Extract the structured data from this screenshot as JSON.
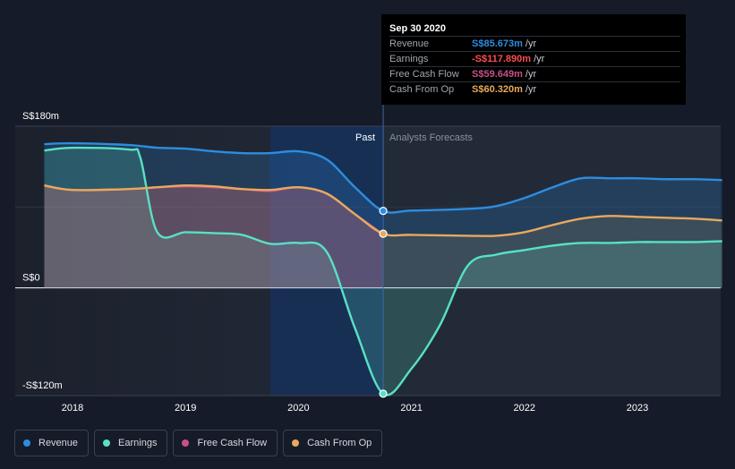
{
  "chart_data": {
    "type": "area",
    "title": "",
    "xlabel": "",
    "ylabel": "",
    "x_axis": {
      "ticks": [
        "2018",
        "2019",
        "2020",
        "2021",
        "2022",
        "2023"
      ],
      "tick_values": [
        2018,
        2019,
        2020,
        2021,
        2022,
        2023
      ],
      "range": [
        2017.75,
        2023.75
      ]
    },
    "y_axis": {
      "ticks": [
        "S$180m",
        "S$0",
        "-S$120m"
      ],
      "tick_values": [
        180,
        0,
        -120
      ],
      "range": [
        -120,
        180
      ]
    },
    "regions": {
      "past_label": "Past",
      "forecast_label": "Analysts Forecasts",
      "split_x": 2020.75,
      "highlight_start": 2019.75
    },
    "series": [
      {
        "name": "Revenue",
        "color": "#2d8de0",
        "points": [
          [
            2017.75,
            160
          ],
          [
            2018.0,
            161
          ],
          [
            2018.5,
            159
          ],
          [
            2018.75,
            156
          ],
          [
            2019.0,
            155
          ],
          [
            2019.25,
            152
          ],
          [
            2019.5,
            150
          ],
          [
            2019.75,
            150
          ],
          [
            2020.0,
            152
          ],
          [
            2020.25,
            143
          ],
          [
            2020.5,
            112
          ],
          [
            2020.75,
            85.7
          ],
          [
            2021.0,
            86
          ],
          [
            2021.5,
            88
          ],
          [
            2021.75,
            91
          ],
          [
            2022.0,
            100
          ],
          [
            2022.25,
            112
          ],
          [
            2022.5,
            122
          ],
          [
            2022.75,
            122
          ],
          [
            2023.0,
            122
          ],
          [
            2023.25,
            121
          ],
          [
            2023.5,
            121
          ],
          [
            2023.75,
            120
          ]
        ]
      },
      {
        "name": "Earnings",
        "color": "#58e1c4",
        "points": [
          [
            2017.75,
            153
          ],
          [
            2018.0,
            156
          ],
          [
            2018.5,
            154
          ],
          [
            2018.6,
            145
          ],
          [
            2018.75,
            62
          ],
          [
            2019.0,
            62
          ],
          [
            2019.25,
            61
          ],
          [
            2019.5,
            59
          ],
          [
            2019.75,
            49
          ],
          [
            2020.0,
            50
          ],
          [
            2020.25,
            40
          ],
          [
            2020.5,
            -45
          ],
          [
            2020.75,
            -117.9
          ],
          [
            2021.0,
            -90
          ],
          [
            2021.25,
            -42
          ],
          [
            2021.5,
            25
          ],
          [
            2021.75,
            37
          ],
          [
            2022.0,
            42
          ],
          [
            2022.25,
            47
          ],
          [
            2022.5,
            50
          ],
          [
            2022.75,
            50
          ],
          [
            2023.0,
            51
          ],
          [
            2023.25,
            51
          ],
          [
            2023.5,
            51
          ],
          [
            2023.75,
            52
          ]
        ]
      },
      {
        "name": "Free Cash Flow",
        "color": "#c8508a",
        "points": [
          [
            2017.75,
            114
          ],
          [
            2018.0,
            109
          ],
          [
            2018.5,
            110
          ],
          [
            2018.75,
            112
          ],
          [
            2019.0,
            113
          ],
          [
            2019.25,
            112
          ],
          [
            2019.5,
            110
          ],
          [
            2019.75,
            108
          ],
          [
            2020.0,
            112
          ],
          [
            2020.25,
            105
          ],
          [
            2020.5,
            82
          ],
          [
            2020.75,
            59.6
          ]
        ]
      },
      {
        "name": "Cash From Op",
        "color": "#e8a95c",
        "points": [
          [
            2017.75,
            114
          ],
          [
            2018.0,
            109
          ],
          [
            2018.5,
            110
          ],
          [
            2018.75,
            112
          ],
          [
            2019.0,
            114
          ],
          [
            2019.25,
            113
          ],
          [
            2019.5,
            110
          ],
          [
            2019.75,
            109
          ],
          [
            2020.0,
            112
          ],
          [
            2020.25,
            105
          ],
          [
            2020.5,
            82
          ],
          [
            2020.75,
            60.3
          ],
          [
            2021.0,
            59
          ],
          [
            2021.5,
            58
          ],
          [
            2021.75,
            58
          ],
          [
            2022.0,
            62
          ],
          [
            2022.25,
            70
          ],
          [
            2022.5,
            77
          ],
          [
            2022.75,
            80
          ],
          [
            2023.0,
            79
          ],
          [
            2023.25,
            78
          ],
          [
            2023.5,
            77
          ],
          [
            2023.75,
            75
          ]
        ]
      }
    ],
    "markers": [
      {
        "series": "Revenue",
        "x": 2020.75,
        "y": 85.7
      },
      {
        "series": "Cash From Op",
        "x": 2020.75,
        "y": 60.3
      },
      {
        "series": "Earnings",
        "x": 2020.75,
        "y": -117.9
      }
    ]
  },
  "tooltip": {
    "date": "Sep 30 2020",
    "rows": [
      {
        "label": "Revenue",
        "value": "S$85.673m",
        "unit": "/yr",
        "color": "#2d8de0"
      },
      {
        "label": "Earnings",
        "value": "-S$117.890m",
        "unit": "/yr",
        "color": "#ff4d4d"
      },
      {
        "label": "Free Cash Flow",
        "value": "S$59.649m",
        "unit": "/yr",
        "color": "#c8508a"
      },
      {
        "label": "Cash From Op",
        "value": "S$60.320m",
        "unit": "/yr",
        "color": "#e8a95c"
      }
    ]
  },
  "legend": [
    {
      "label": "Revenue",
      "color": "#2d8de0"
    },
    {
      "label": "Earnings",
      "color": "#58e1c4"
    },
    {
      "label": "Free Cash Flow",
      "color": "#c8508a"
    },
    {
      "label": "Cash From Op",
      "color": "#e8a95c"
    }
  ]
}
